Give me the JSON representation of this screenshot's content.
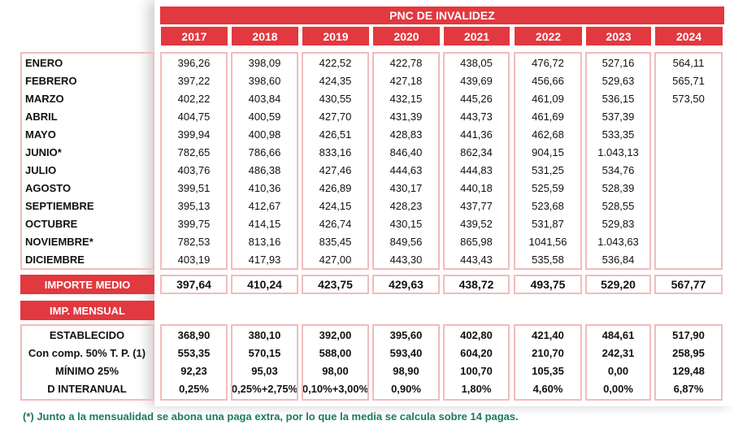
{
  "title": "PNC DE INVALIDEZ",
  "years": [
    "2017",
    "2018",
    "2019",
    "2020",
    "2021",
    "2022",
    "2023",
    "2024"
  ],
  "months": [
    {
      "label": "ENERO",
      "values": [
        "396,26",
        "398,09",
        "422,52",
        "422,78",
        "438,05",
        "476,72",
        "527,16",
        "564,11"
      ]
    },
    {
      "label": "FEBRERO",
      "values": [
        "397,22",
        "398,60",
        "424,35",
        "427,18",
        "439,69",
        "456,66",
        "529,63",
        "565,71"
      ]
    },
    {
      "label": "MARZO",
      "values": [
        "402,22",
        "403,84",
        "430,55",
        "432,15",
        "445,26",
        "461,09",
        "536,15",
        "573,50"
      ]
    },
    {
      "label": "ABRIL",
      "values": [
        "404,75",
        "400,59",
        "427,70",
        "431,39",
        "443,73",
        "461,69",
        "537,39"
      ]
    },
    {
      "label": "MAYO",
      "values": [
        "399,94",
        "400,98",
        "426,51",
        "428,83",
        "441,36",
        "462,68",
        "533,35"
      ]
    },
    {
      "label": "JUNIO*",
      "values": [
        "782,65",
        "786,66",
        "833,16",
        "846,40",
        "862,34",
        "904,15",
        "1.043,13"
      ]
    },
    {
      "label": "JULIO",
      "values": [
        "403,76",
        "486,38",
        "427,46",
        "444,63",
        "444,83",
        "531,25",
        "534,76"
      ]
    },
    {
      "label": "AGOSTO",
      "values": [
        "399,51",
        "410,36",
        "426,89",
        "430,17",
        "440,18",
        "525,59",
        "528,39"
      ]
    },
    {
      "label": "SEPTIEMBRE",
      "values": [
        "395,13",
        "412,67",
        "424,15",
        "428,23",
        "437,77",
        "523,68",
        "528,55"
      ]
    },
    {
      "label": "OCTUBRE",
      "values": [
        "399,75",
        "414,15",
        "426,74",
        "430,15",
        "439,52",
        "531,87",
        "529,83"
      ]
    },
    {
      "label": "NOVIEMBRE*",
      "values": [
        "782,53",
        "813,16",
        "835,45",
        "849,56",
        "865,98",
        "1041,56",
        "1.043,63"
      ]
    },
    {
      "label": "DICIEMBRE",
      "values": [
        "403,19",
        "417,93",
        "427,00",
        "443,30",
        "443,43",
        "535,58",
        "536,84"
      ]
    }
  ],
  "importe_medio": {
    "label": "IMPORTE MEDIO",
    "values": [
      "397,64",
      "410,24",
      "423,75",
      "429,63",
      "438,72",
      "493,75",
      "529,20",
      "567,77"
    ]
  },
  "imp_mensual": "IMP. MENSUAL",
  "mensual_rows": [
    {
      "label": "ESTABLECIDO",
      "values": [
        "368,90",
        "380,10",
        "392,00",
        "395,60",
        "402,80",
        "421,40",
        "484,61",
        "517,90"
      ]
    },
    {
      "label": "Con comp. 50% T. P. (1)",
      "values": [
        "553,35",
        "570,15",
        "588,00",
        "593,40",
        "604,20",
        "210,70",
        "242,31",
        "258,95"
      ]
    },
    {
      "label": "MÍNIMO 25%",
      "values": [
        "92,23",
        "95,03",
        "98,00",
        "98,90",
        "100,70",
        "105,35",
        "0,00",
        "129,48"
      ]
    },
    {
      "label": "D INTERANUAL",
      "values": [
        "0,25%",
        "0,25%+2,75%",
        "0,10%+3,00%",
        "0,90%",
        "1,80%",
        "4,60%",
        "0,00%",
        "6,87%"
      ]
    }
  ],
  "footnote": "(*) Junto a la mensualidad se abona una paga extra, por lo que la media se calcula sobre 14 pagas."
}
